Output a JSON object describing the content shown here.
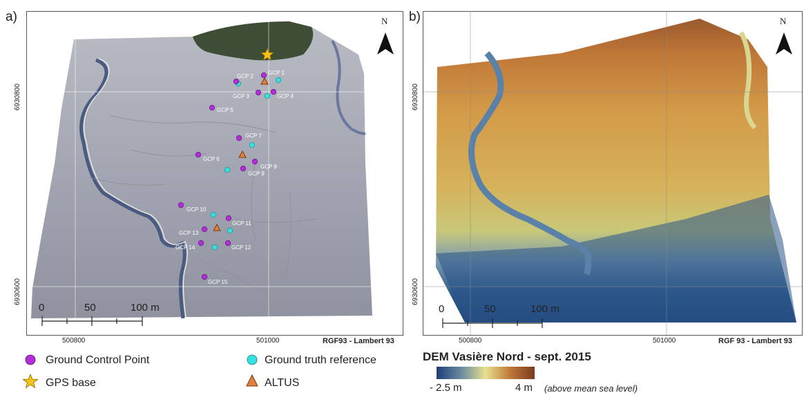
{
  "panel_a": {
    "letter": "a)",
    "north": "N",
    "gcps": [
      "GCP 1",
      "GCP 2",
      "GCP 3",
      "GCP 4",
      "GCP 5",
      "GCP 6",
      "GCP 7",
      "GCP 8",
      "GCP 9",
      "GCP 10",
      "GCP 11",
      "GCP 12",
      "GCP 13",
      "GCP 14",
      "GCP 15"
    ],
    "scale": {
      "t0": "0",
      "t1": "50",
      "t2": "100 m"
    },
    "x_ticks": [
      "500800",
      "501000"
    ],
    "y_ticks": [
      "6930800",
      "6930600"
    ],
    "crs": "RGF93 - Lambert 93"
  },
  "panel_b": {
    "letter": "b)",
    "north": "N",
    "scale": {
      "t0": "0",
      "t1": "50",
      "t2": "100 m"
    },
    "x_ticks": [
      "500800",
      "501000"
    ],
    "y_ticks": [
      "6930800",
      "6930600"
    ],
    "crs": "RGF 93 - Lambert 93"
  },
  "legend": {
    "gcp": "Ground Control Point",
    "gps": "GPS base",
    "gtr": "Ground truth reference",
    "altus": "ALTUS",
    "colors": {
      "gcp": "#b12fd6",
      "gps": "#f6c21a",
      "gtr": "#36e0e0",
      "altus": "#e08040"
    }
  },
  "dem": {
    "title": "DEM Vasière Nord - sept. 2015",
    "min_label": "- 2.5 m",
    "max_label": "4 m",
    "note": "(above mean sea level)",
    "min": -2.5,
    "max": 4
  }
}
